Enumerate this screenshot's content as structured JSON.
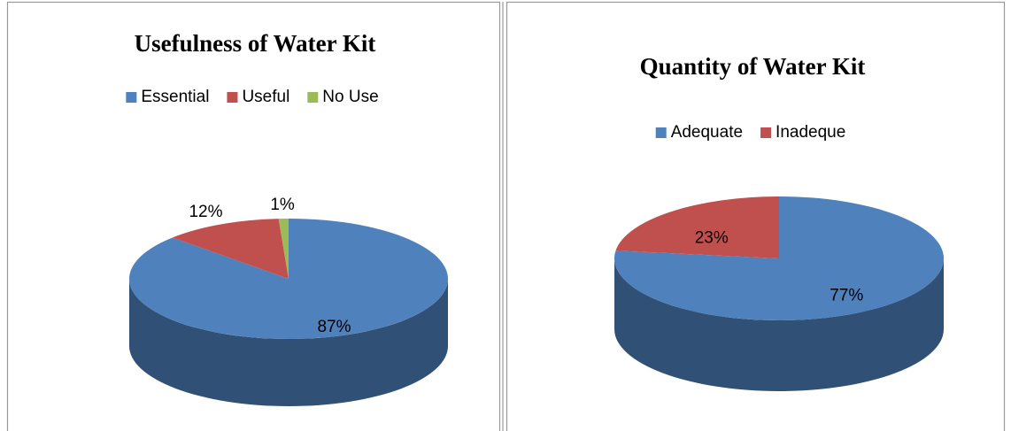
{
  "chart_data": [
    {
      "type": "pie",
      "title": "Usefulness of Water Kit",
      "categories": [
        "Essential",
        "Useful",
        "No Use"
      ],
      "values": [
        87,
        12,
        1
      ],
      "value_labels": [
        "87%",
        "12%",
        "1%"
      ],
      "colors": [
        "#4f81bd",
        "#c0504d",
        "#9bbb59"
      ],
      "legend": "top"
    },
    {
      "type": "pie",
      "title": "Quantity of Water Kit",
      "categories": [
        "Adequate",
        "Inadeque"
      ],
      "values": [
        77,
        23
      ],
      "value_labels": [
        "77%",
        "23%"
      ],
      "colors": [
        "#4f81bd",
        "#c0504d"
      ],
      "legend": "top"
    }
  ]
}
